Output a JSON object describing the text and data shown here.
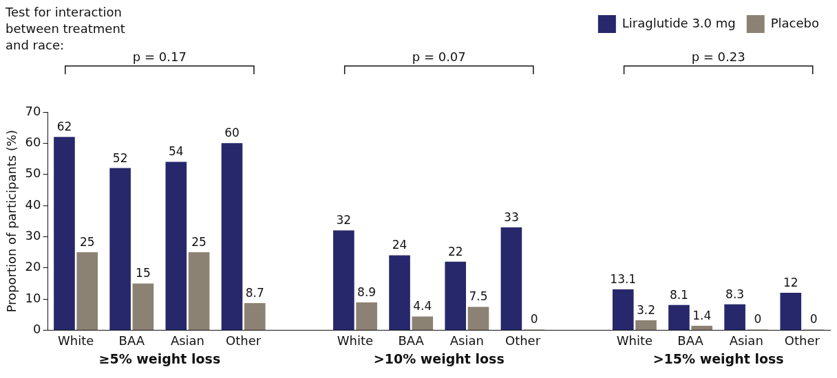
{
  "chart_data": {
    "type": "bar",
    "categories": [
      "White",
      "BAA",
      "Asian",
      "Other",
      null,
      "White",
      "BAA",
      "Asian",
      "Other",
      null,
      "White",
      "BAA",
      "Asian",
      "Other"
    ],
    "series": [
      {
        "name": "Liraglutide 3.0 mg",
        "color": "#27286b",
        "values": [
          62,
          52,
          54,
          60,
          null,
          32,
          24,
          22,
          33,
          null,
          13.1,
          8.1,
          8.3,
          12
        ]
      },
      {
        "name": "Placebo",
        "color": "#8c8273",
        "values": [
          25,
          15,
          25,
          8.7,
          null,
          8.9,
          4.4,
          7.5,
          0,
          null,
          3.2,
          1.4,
          0,
          0
        ]
      }
    ],
    "ylabel": "Proportion of participants (%)",
    "ylim": [
      0,
      70
    ],
    "yticks": [
      0,
      10,
      20,
      30,
      40,
      50,
      60,
      70
    ],
    "grid": false,
    "legend": "top right",
    "data_labels": true,
    "annotations": [
      "Test for interaction between treatment and race:",
      "p = 0.17",
      "p = 0.07",
      "p = 0.23",
      "≥5% weight loss",
      ">10% weight loss",
      ">15% weight loss"
    ]
  }
}
